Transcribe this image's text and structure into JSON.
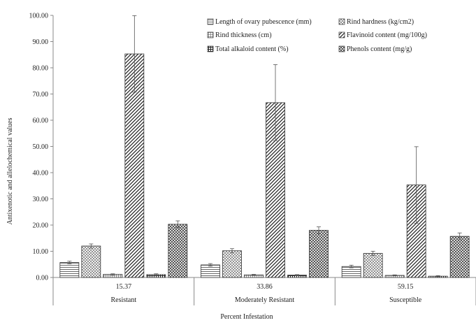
{
  "chart_data": {
    "type": "bar",
    "title": "",
    "xlabel": "Percent Infestation",
    "ylabel": "Antixenotic and allelochemical values",
    "ylim": [
      0,
      100
    ],
    "y_ticks": [
      "0.00",
      "10.00",
      "20.00",
      "30.00",
      "40.00",
      "50.00",
      "60.00",
      "70.00",
      "80.00",
      "90.00",
      "100.00"
    ],
    "grid": false,
    "legend_position": "top-right",
    "categories": [
      "15.37",
      "33.86",
      "59.15"
    ],
    "category_groups": [
      "Resistant",
      "Moderately Resistant",
      "Susceptible"
    ],
    "series": [
      {
        "name": "Length of ovary pubescence (mm)",
        "pattern": "hlines",
        "values": [
          5.7,
          4.8,
          4.2
        ],
        "errors": [
          0.5,
          0.5,
          0.5
        ]
      },
      {
        "name": "Rind hardness (kg/cm2)",
        "pattern": "dots",
        "values": [
          12.0,
          10.2,
          9.2
        ],
        "errors": [
          0.8,
          0.8,
          0.8
        ]
      },
      {
        "name": "Rind thickness (cm)",
        "pattern": "grid",
        "values": [
          1.2,
          1.0,
          0.8
        ],
        "errors": [
          0.2,
          0.2,
          0.2
        ]
      },
      {
        "name": "Flavinoid content (mg/100g)",
        "pattern": "diag",
        "values": [
          85.3,
          66.7,
          35.3
        ],
        "errors": [
          14.6,
          14.5,
          14.6
        ]
      },
      {
        "name": "Total alkaloid content (%)",
        "pattern": "cross",
        "values": [
          1.1,
          0.9,
          0.5
        ],
        "errors": [
          0.3,
          0.2,
          0.2
        ]
      },
      {
        "name": "Phenols content (mg/g)",
        "pattern": "check",
        "values": [
          20.3,
          18.0,
          15.7
        ],
        "errors": [
          1.3,
          1.3,
          1.3
        ]
      }
    ],
    "colors": {
      "bar_stroke": "#333333",
      "axis": "#888888",
      "text": "#222222"
    }
  }
}
